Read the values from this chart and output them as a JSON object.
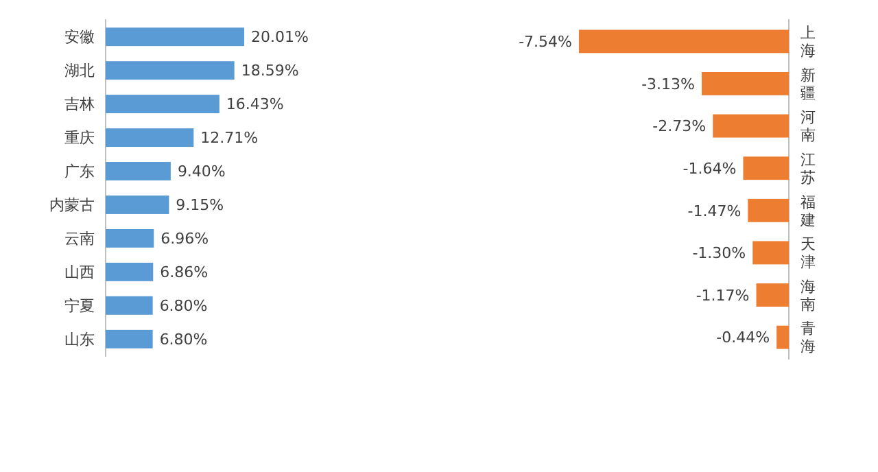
{
  "chart_data": [
    {
      "type": "bar",
      "orientation": "horizontal",
      "categories": [
        "安徽",
        "湖北",
        "吉林",
        "重庆",
        "广东",
        "内蒙古",
        "云南",
        "山西",
        "宁夏",
        "山东"
      ],
      "values": [
        20.01,
        18.59,
        16.43,
        12.71,
        9.4,
        9.15,
        6.96,
        6.86,
        6.8,
        6.8
      ],
      "value_labels": [
        "20.01%",
        "18.59%",
        "16.43%",
        "12.71%",
        "9.40%",
        "9.15%",
        "6.96%",
        "6.86%",
        "6.80%",
        "6.80%"
      ],
      "color": "#5b9bd5"
    },
    {
      "type": "bar",
      "orientation": "horizontal",
      "categories": [
        "上海",
        "新疆",
        "河南",
        "江苏",
        "福建",
        "天津",
        "海南",
        "青海"
      ],
      "values": [
        -7.54,
        -3.13,
        -2.73,
        -1.64,
        -1.47,
        -1.3,
        -1.17,
        -0.44
      ],
      "value_labels": [
        "-7.54%",
        "-3.13%",
        "-2.73%",
        "-1.64%",
        "-1.47%",
        "-1.30%",
        "-1.17%",
        "-0.44%"
      ],
      "color": "#ed7d31"
    }
  ]
}
